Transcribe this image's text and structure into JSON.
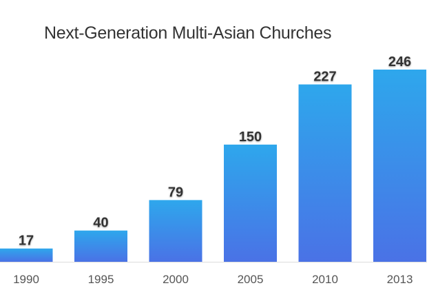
{
  "chart_data": {
    "type": "bar",
    "title": "Next-Generation Multi-Asian Churches",
    "xlabel": "",
    "ylabel": "",
    "categories": [
      "1990",
      "1995",
      "2000",
      "2005",
      "2010",
      "2013"
    ],
    "values": [
      17,
      40,
      79,
      150,
      227,
      246
    ],
    "ylim": [
      0,
      246
    ],
    "grid": false,
    "legend": "none",
    "colors": {
      "bar_top": "#2ea7ec",
      "bar_bottom": "#4a72e6",
      "label": "#333333",
      "tick": "#555555",
      "axis": "#dddddd"
    }
  }
}
